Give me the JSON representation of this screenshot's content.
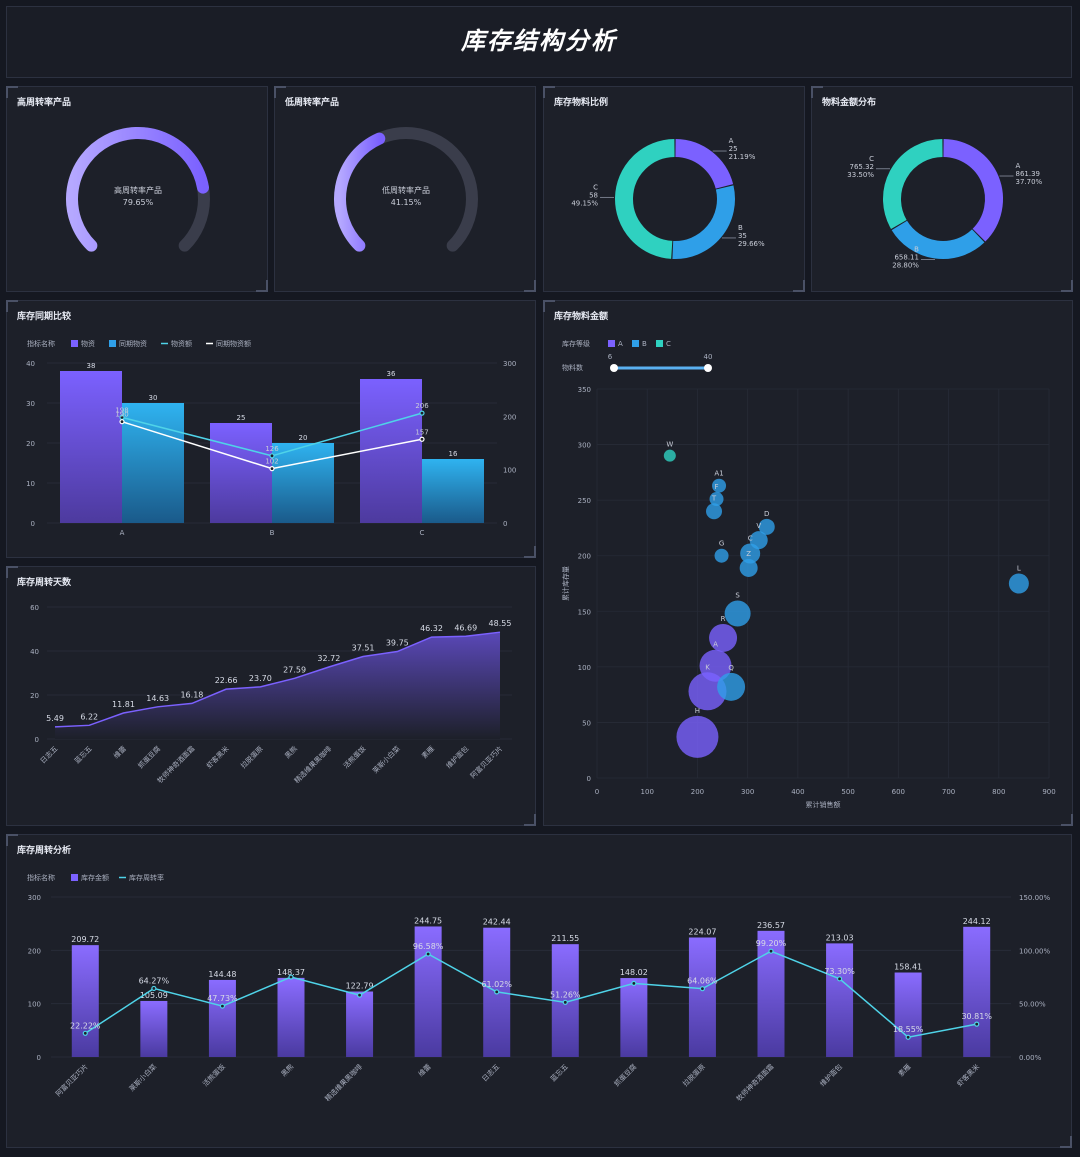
{
  "header": {
    "title": "库存结构分析"
  },
  "colors": {
    "purple": "#7b61ff",
    "blue": "#2f9fe8",
    "teal": "#2fd1c0",
    "gaugeTrack": "#3a3d4b",
    "line1": "#4fd3e8",
    "line2": "#ffffff"
  },
  "gauges": [
    {
      "title": "高周转率产品",
      "label": "高周转率产品",
      "value_text": "79.65%",
      "percent": 79.65
    },
    {
      "title": "低周转率产品",
      "label": "低周转率产品",
      "value_text": "41.15%",
      "percent": 41.15
    }
  ],
  "donuts": [
    {
      "title": "库存物料比例",
      "slices": [
        {
          "name": "A",
          "value_text": "25",
          "pct_text": "21.19%",
          "pct": 21.19,
          "color": "#7b61ff"
        },
        {
          "name": "B",
          "value_text": "35",
          "pct_text": "29.66%",
          "pct": 29.66,
          "color": "#2f9fe8"
        },
        {
          "name": "C",
          "value_text": "58",
          "pct_text": "49.15%",
          "pct": 49.15,
          "color": "#2fd1c0"
        }
      ]
    },
    {
      "title": "物料金额分布",
      "slices": [
        {
          "name": "A",
          "value_text": "861.39",
          "pct_text": "37.70%",
          "pct": 37.7,
          "color": "#7b61ff"
        },
        {
          "name": "B",
          "value_text": "658.11",
          "pct_text": "28.80%",
          "pct": 28.8,
          "color": "#2f9fe8"
        },
        {
          "name": "C",
          "value_text": "765.32",
          "pct_text": "33.50%",
          "pct": 33.5,
          "color": "#2fd1c0"
        }
      ]
    }
  ],
  "chart_data": [
    {
      "id": "compare",
      "type": "bar",
      "title": "库存同期比较",
      "legend_title": "指标名称",
      "categories": [
        "A",
        "B",
        "C"
      ],
      "series": [
        {
          "name": "物资",
          "kind": "bar",
          "values": [
            38,
            25,
            36
          ]
        },
        {
          "name": "同期物资",
          "kind": "bar",
          "values": [
            30,
            20,
            16
          ]
        },
        {
          "name": "物资额",
          "kind": "line",
          "axis": "right",
          "values": [
            198,
            126,
            206
          ]
        },
        {
          "name": "同期物资额",
          "kind": "line",
          "axis": "right",
          "values": [
            190,
            102,
            157
          ]
        }
      ],
      "ylim": [
        0,
        40
      ],
      "yticks": [
        0,
        10,
        20,
        30,
        40
      ],
      "y2lim": [
        0,
        300
      ],
      "y2ticks": [
        0,
        100,
        200,
        300
      ]
    },
    {
      "id": "days",
      "type": "area",
      "title": "库存周转天数",
      "categories": [
        "日志五",
        "蓝忘五",
        "维蕾",
        "抓蛋豆腐",
        "牧师神奇酒面霜",
        "虾客黑米",
        "拉脱蛋原",
        "黑熊",
        "精选维果黑咖啡",
        "活熊蛋饭",
        "莱斯小白菜",
        "素雁",
        "维护面包",
        "阿富贝亚巧片"
      ],
      "values": [
        5.49,
        6.22,
        11.81,
        14.63,
        16.18,
        22.66,
        23.7,
        27.59,
        32.72,
        37.51,
        39.75,
        46.32,
        46.69,
        48.55
      ],
      "labels": [
        "5.49",
        "6.22",
        "11.81",
        "14.63",
        "16.18",
        "22.66",
        "23.70",
        "27.59",
        "32.72",
        "37.51",
        "39.75",
        "46.32",
        "46.69",
        "48.55"
      ],
      "ylim": [
        0,
        60
      ],
      "yticks": [
        0,
        20,
        40,
        60
      ]
    },
    {
      "id": "bubble",
      "type": "scatter",
      "title": "库存物料金额",
      "legend_title": "库存等级",
      "legend": [
        "A",
        "B",
        "C"
      ],
      "slider_label": "物料数",
      "slider_min": "6",
      "slider_max": "40",
      "xlabel": "累计销售额",
      "ylabel": "累计库存量",
      "xlim": [
        0,
        900
      ],
      "ylim": [
        0,
        350
      ],
      "xticks": [
        0,
        100,
        200,
        300,
        400,
        500,
        600,
        700,
        800,
        900
      ],
      "yticks": [
        0,
        50,
        100,
        150,
        200,
        250,
        300,
        350
      ],
      "points": [
        {
          "label": "W",
          "x": 145,
          "y": 290,
          "r": 6,
          "cls": "C"
        },
        {
          "label": "A1",
          "x": 243,
          "y": 263,
          "r": 7,
          "cls": "B"
        },
        {
          "label": "F",
          "x": 238,
          "y": 251,
          "r": 7,
          "cls": "B"
        },
        {
          "label": "T",
          "x": 233,
          "y": 240,
          "r": 8,
          "cls": "B"
        },
        {
          "label": "D",
          "x": 338,
          "y": 226,
          "r": 8,
          "cls": "B"
        },
        {
          "label": "V",
          "x": 322,
          "y": 214,
          "r": 9,
          "cls": "B"
        },
        {
          "label": "G",
          "x": 248,
          "y": 200,
          "r": 7,
          "cls": "B"
        },
        {
          "label": "C",
          "x": 305,
          "y": 202,
          "r": 10,
          "cls": "B"
        },
        {
          "label": "Z",
          "x": 302,
          "y": 189,
          "r": 9,
          "cls": "B"
        },
        {
          "label": "L",
          "x": 840,
          "y": 175,
          "r": 10,
          "cls": "B"
        },
        {
          "label": "S",
          "x": 280,
          "y": 148,
          "r": 13,
          "cls": "B"
        },
        {
          "label": "R",
          "x": 251,
          "y": 126,
          "r": 14,
          "cls": "A"
        },
        {
          "label": "A",
          "x": 236,
          "y": 101,
          "r": 16,
          "cls": "A"
        },
        {
          "label": "K",
          "x": 220,
          "y": 78,
          "r": 19,
          "cls": "A"
        },
        {
          "label": "Q",
          "x": 267,
          "y": 82,
          "r": 14,
          "cls": "B"
        },
        {
          "label": "H",
          "x": 200,
          "y": 37,
          "r": 21,
          "cls": "A"
        }
      ]
    },
    {
      "id": "turnover",
      "type": "bar",
      "title": "库存周转分析",
      "legend_title": "指标名称",
      "categories": [
        "阿富贝亚巧片",
        "莱斯小白菜",
        "活熊蛋饭",
        "黑熊",
        "精选维果黑咖啡",
        "维蕾",
        "日志五",
        "蓝忘五",
        "抓蛋豆腐",
        "拉脱蛋原",
        "牧师神奇酒面霜",
        "维护面包",
        "素雁",
        "虾客黑米"
      ],
      "series": [
        {
          "name": "库存金额",
          "kind": "bar",
          "values": [
            209.72,
            105.09,
            144.48,
            148.37,
            122.79,
            244.75,
            242.44,
            211.55,
            148.02,
            224.07,
            236.57,
            213.03,
            158.41,
            244.12
          ],
          "labels": [
            "209.72",
            "105.09",
            "144.48",
            "148.37",
            "122.79",
            "244.75",
            "242.44",
            "211.55",
            "148.02",
            "224.07",
            "236.57",
            "213.03",
            "158.41",
            "244.12"
          ]
        },
        {
          "name": "库存周转率",
          "kind": "line",
          "axis": "right",
          "values": [
            22.22,
            64.27,
            47.73,
            75.0,
            58.0,
            96.58,
            61.02,
            51.26,
            69.0,
            64.06,
            99.2,
            73.3,
            18.55,
            30.81
          ],
          "labels": [
            "22.22%",
            "64.27%",
            "47.73%",
            "",
            "",
            "96.58%",
            "61.02%",
            "51.26%",
            "",
            "64.06%",
            "99.20%",
            "73.30%",
            "18.55%",
            "30.81%"
          ]
        }
      ],
      "ylim": [
        0,
        300
      ],
      "yticks": [
        0,
        100,
        200,
        300
      ],
      "y2lim": [
        0,
        150
      ],
      "y2ticks": [
        "0.00%",
        "50.00%",
        "100.00%",
        "150.00%"
      ]
    }
  ]
}
